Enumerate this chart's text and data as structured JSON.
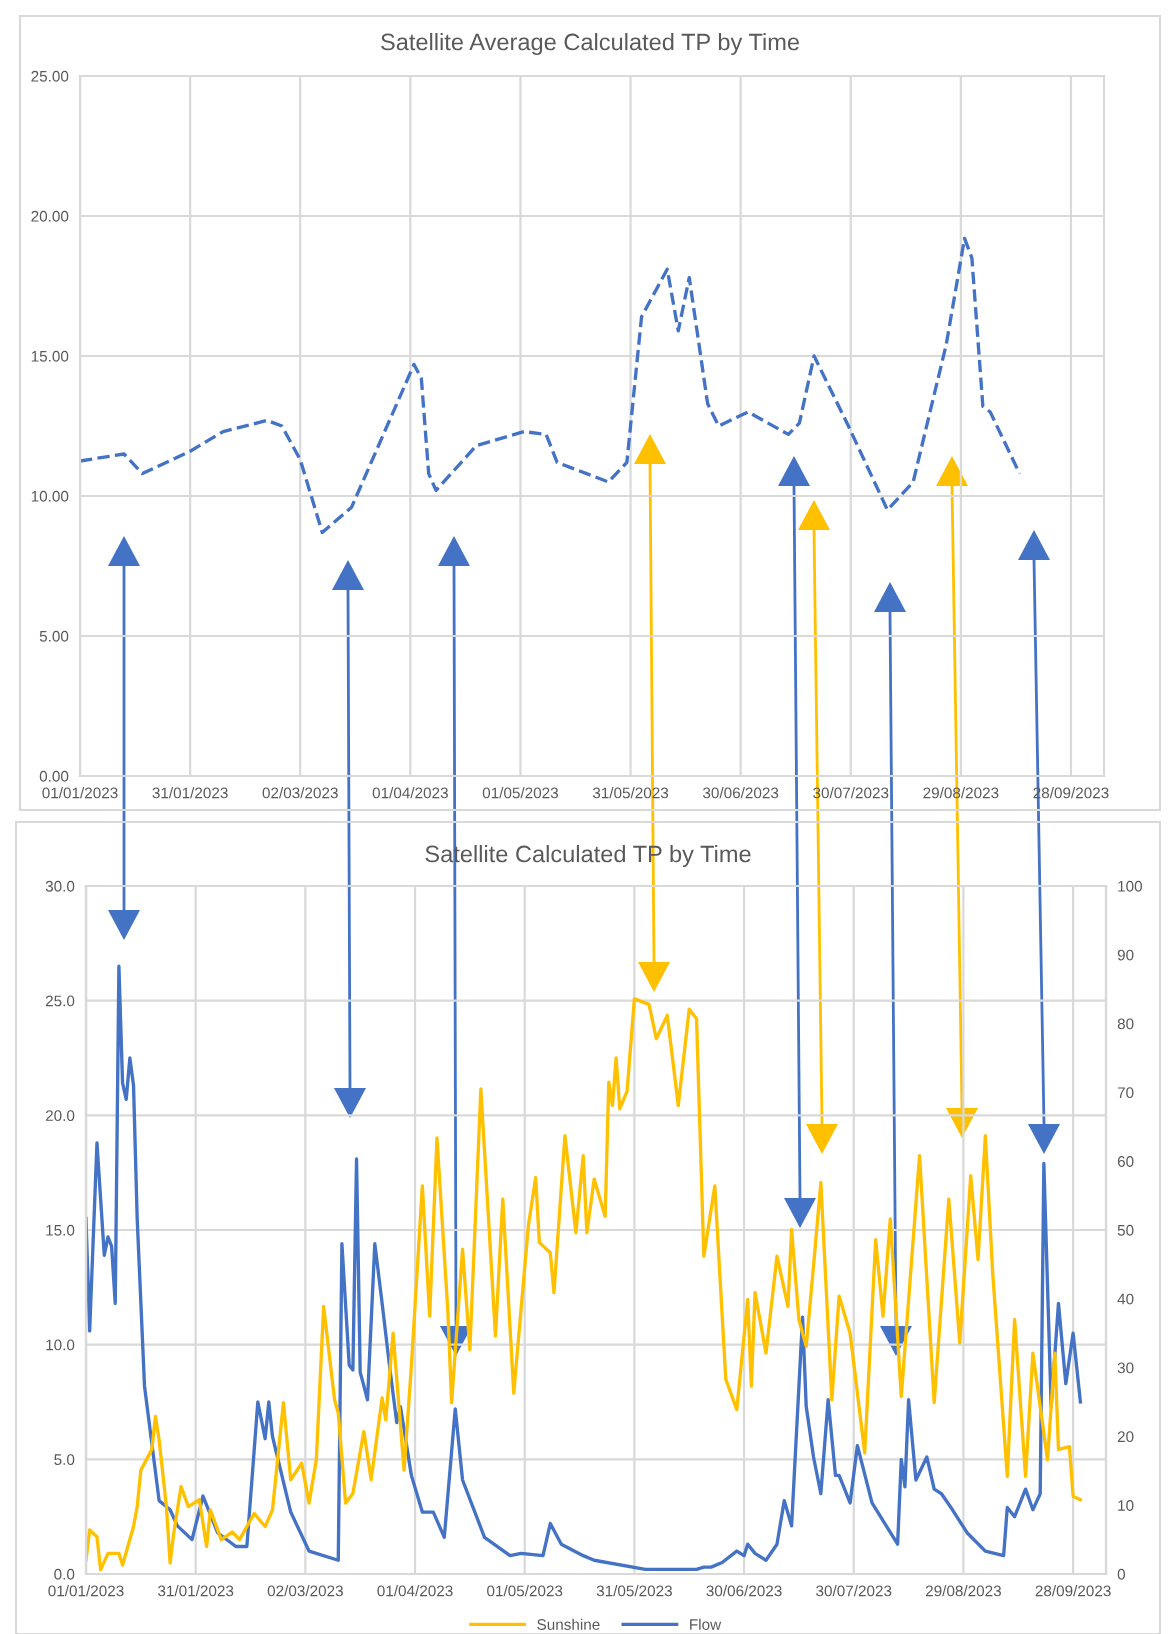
{
  "chart_data": [
    {
      "type": "line",
      "title": "Satellite Average Calculated TP by Time",
      "grid": true,
      "legend": false,
      "marker": "none",
      "line_style": "dashed",
      "xlim": [
        "2023-01-01",
        "2023-10-07"
      ],
      "xticks": [
        {
          "value": "2023-01-01",
          "label": "01/01/2023"
        },
        {
          "value": "2023-01-31",
          "label": "31/01/2023"
        },
        {
          "value": "2023-03-02",
          "label": "02/03/2023"
        },
        {
          "value": "2023-04-01",
          "label": "01/04/2023"
        },
        {
          "value": "2023-05-01",
          "label": "01/05/2023"
        },
        {
          "value": "2023-05-31",
          "label": "31/05/2023"
        },
        {
          "value": "2023-06-30",
          "label": "30/06/2023"
        },
        {
          "value": "2023-07-30",
          "label": "30/07/2023"
        },
        {
          "value": "2023-08-29",
          "label": "29/08/2023"
        },
        {
          "value": "2023-09-28",
          "label": "28/09/2023"
        }
      ],
      "ylim": [
        0,
        25
      ],
      "yticks": [
        {
          "value": 0,
          "label": "0.00"
        },
        {
          "value": 5,
          "label": "5.00"
        },
        {
          "value": 10,
          "label": "10.00"
        },
        {
          "value": 15,
          "label": "15.00"
        },
        {
          "value": 20,
          "label": "20.00"
        },
        {
          "value": 25,
          "label": "25.00"
        }
      ],
      "series": [
        {
          "color": "#4472c4",
          "x": [
            "2023-01-01",
            "2023-01-13",
            "2023-01-18",
            "2023-01-31",
            "2023-02-09",
            "2023-02-21",
            "2023-02-25",
            "2023-03-02",
            "2023-03-08",
            "2023-03-16",
            "2023-03-26",
            "2023-04-02",
            "2023-04-04",
            "2023-04-06",
            "2023-04-08",
            "2023-04-19",
            "2023-05-02",
            "2023-05-08",
            "2023-05-11",
            "2023-05-25",
            "2023-05-30",
            "2023-06-03",
            "2023-06-10",
            "2023-06-13",
            "2023-06-16",
            "2023-06-21",
            "2023-06-24",
            "2023-07-02",
            "2023-07-13",
            "2023-07-16",
            "2023-07-20",
            "2023-07-29",
            "2023-08-09",
            "2023-08-16",
            "2023-08-25",
            "2023-08-30",
            "2023-09-01",
            "2023-09-04",
            "2023-09-06",
            "2023-09-14"
          ],
          "values": [
            11.25,
            11.5,
            10.8,
            11.6,
            12.3,
            12.7,
            12.5,
            11.3,
            8.7,
            9.6,
            12.6,
            14.7,
            14.2,
            10.8,
            10.2,
            11.8,
            12.3,
            12.2,
            11.2,
            10.5,
            11.2,
            16.4,
            18.1,
            15.9,
            17.8,
            13.3,
            12.5,
            13.0,
            12.2,
            12.6,
            15.0,
            12.6,
            9.5,
            10.5,
            15.4,
            19.2,
            18.5,
            13.2,
            13.0,
            10.8
          ]
        }
      ]
    },
    {
      "type": "line",
      "title": "Satellite Calculated TP by Time",
      "grid": true,
      "legend": "bottom",
      "marker": "none",
      "line_style": "solid",
      "xlim": [
        "2023-01-01",
        "2023-10-07"
      ],
      "xticks": [
        {
          "value": "2023-01-01",
          "label": "01/01/2023"
        },
        {
          "value": "2023-01-31",
          "label": "31/01/2023"
        },
        {
          "value": "2023-03-02",
          "label": "02/03/2023"
        },
        {
          "value": "2023-04-01",
          "label": "01/04/2023"
        },
        {
          "value": "2023-05-01",
          "label": "01/05/2023"
        },
        {
          "value": "2023-05-31",
          "label": "31/05/2023"
        },
        {
          "value": "2023-06-30",
          "label": "30/06/2023"
        },
        {
          "value": "2023-07-30",
          "label": "30/07/2023"
        },
        {
          "value": "2023-08-29",
          "label": "29/08/2023"
        },
        {
          "value": "2023-09-28",
          "label": "28/09/2023"
        }
      ],
      "ylim": [
        0,
        30
      ],
      "yticks": [
        {
          "value": 0,
          "label": "0.0"
        },
        {
          "value": 5,
          "label": "5.0"
        },
        {
          "value": 10,
          "label": "10.0"
        },
        {
          "value": 15,
          "label": "15.0"
        },
        {
          "value": 20,
          "label": "20.0"
        },
        {
          "value": 25,
          "label": "25.0"
        },
        {
          "value": 30,
          "label": "30.0"
        }
      ],
      "y2lim": [
        0,
        100
      ],
      "y2ticks": [
        0,
        10,
        20,
        30,
        40,
        50,
        60,
        70,
        80,
        90,
        100
      ],
      "series": [
        {
          "name": "Sunshine",
          "color": "#ffc000",
          "axis": "y2",
          "x": [
            "2023-01-01",
            "2023-01-02",
            "2023-01-04",
            "2023-01-05",
            "2023-01-07",
            "2023-01-10",
            "2023-01-11",
            "2023-01-14",
            "2023-01-15",
            "2023-01-16",
            "2023-01-19",
            "2023-01-20",
            "2023-01-21",
            "2023-01-23",
            "2023-01-24",
            "2023-01-25",
            "2023-01-27",
            "2023-01-29",
            "2023-02-01",
            "2023-02-03",
            "2023-02-04",
            "2023-02-07",
            "2023-02-10",
            "2023-02-12",
            "2023-02-16",
            "2023-02-19",
            "2023-02-21",
            "2023-02-24",
            "2023-02-26",
            "2023-03-01",
            "2023-03-03",
            "2023-03-05",
            "2023-03-07",
            "2023-03-10",
            "2023-03-11",
            "2023-03-13",
            "2023-03-15",
            "2023-03-18",
            "2023-03-20",
            "2023-03-23",
            "2023-03-24",
            "2023-03-26",
            "2023-03-29",
            "2023-03-31",
            "2023-04-03",
            "2023-04-05",
            "2023-04-07",
            "2023-04-10",
            "2023-04-11",
            "2023-04-14",
            "2023-04-16",
            "2023-04-19",
            "2023-04-23",
            "2023-04-25",
            "2023-04-28",
            "2023-05-02",
            "2023-05-04",
            "2023-05-05",
            "2023-05-08",
            "2023-05-09",
            "2023-05-12",
            "2023-05-15",
            "2023-05-17",
            "2023-05-18",
            "2023-05-20",
            "2023-05-23",
            "2023-05-24",
            "2023-05-25",
            "2023-05-26",
            "2023-05-27",
            "2023-05-29",
            "2023-05-31",
            "2023-06-04",
            "2023-06-06",
            "2023-06-09",
            "2023-06-12",
            "2023-06-15",
            "2023-06-17",
            "2023-06-19",
            "2023-06-22",
            "2023-06-25",
            "2023-06-28",
            "2023-07-01",
            "2023-07-02",
            "2023-07-03",
            "2023-07-06",
            "2023-07-09",
            "2023-07-12",
            "2023-07-13",
            "2023-07-15",
            "2023-07-17",
            "2023-07-19",
            "2023-07-21",
            "2023-07-24",
            "2023-07-26",
            "2023-07-29",
            "2023-08-02",
            "2023-08-05",
            "2023-08-07",
            "2023-08-09",
            "2023-08-12",
            "2023-08-17",
            "2023-08-21",
            "2023-08-25",
            "2023-08-28",
            "2023-08-31",
            "2023-09-02",
            "2023-09-04",
            "2023-09-06",
            "2023-09-10",
            "2023-09-12",
            "2023-09-15",
            "2023-09-17",
            "2023-09-21",
            "2023-09-23",
            "2023-09-24",
            "2023-09-27",
            "2023-09-28",
            "2023-09-30"
          ],
          "values": [
            2.0,
            6.4,
            5.4,
            0.6,
            3.0,
            3.0,
            1.3,
            6.9,
            9.8,
            15.1,
            18.1,
            22.9,
            19.5,
            9.8,
            1.6,
            5.9,
            12.7,
            9.8,
            10.8,
            4.0,
            9.3,
            5.0,
            6.1,
            5.0,
            8.8,
            6.9,
            9.3,
            24.9,
            13.7,
            16.1,
            10.3,
            16.6,
            38.9,
            25.3,
            23.4,
            10.3,
            11.7,
            20.7,
            13.7,
            25.6,
            22.4,
            35.0,
            15.1,
            30.2,
            56.4,
            37.5,
            63.4,
            38.0,
            24.9,
            47.2,
            32.6,
            70.5,
            34.6,
            54.5,
            26.3,
            50.6,
            57.6,
            48.2,
            46.7,
            40.9,
            63.7,
            49.6,
            60.8,
            49.6,
            57.4,
            52.0,
            71.5,
            68.1,
            75.0,
            67.6,
            70.2,
            83.6,
            82.8,
            77.8,
            81.2,
            68.1,
            82.1,
            80.7,
            46.2,
            56.4,
            28.3,
            23.9,
            39.9,
            27.3,
            40.9,
            32.1,
            46.2,
            38.9,
            50.1,
            37.0,
            33.1,
            44.8,
            56.9,
            25.3,
            40.4,
            35.0,
            17.6,
            48.6,
            37.5,
            51.6,
            25.8,
            60.8,
            24.9,
            54.5,
            33.6,
            57.9,
            45.7,
            63.7,
            43.8,
            14.2,
            37.0,
            14.2,
            32.1,
            16.6,
            32.1,
            18.1,
            18.5,
            11.3,
            10.8
          ]
        },
        {
          "name": "Flow",
          "color": "#4472c4",
          "x": [
            "2023-01-01",
            "2023-01-02",
            "2023-01-04",
            "2023-01-06",
            "2023-01-07",
            "2023-01-08",
            "2023-01-09",
            "2023-01-10",
            "2023-01-11",
            "2023-01-12",
            "2023-01-13",
            "2023-01-14",
            "2023-01-15",
            "2023-01-17",
            "2023-01-21",
            "2023-01-24",
            "2023-01-26",
            "2023-01-30",
            "2023-02-02",
            "2023-02-06",
            "2023-02-11",
            "2023-02-14",
            "2023-02-17",
            "2023-02-19",
            "2023-02-20",
            "2023-02-21",
            "2023-02-26",
            "2023-03-03",
            "2023-03-11",
            "2023-03-12",
            "2023-03-14",
            "2023-03-15",
            "2023-03-16",
            "2023-03-17",
            "2023-03-19",
            "2023-03-21",
            "2023-03-23",
            "2023-03-25",
            "2023-03-27",
            "2023-03-28",
            "2023-03-31",
            "2023-04-03",
            "2023-04-06",
            "2023-04-09",
            "2023-04-12",
            "2023-04-14",
            "2023-04-20",
            "2023-04-27",
            "2023-04-30",
            "2023-05-06",
            "2023-05-08",
            "2023-05-11",
            "2023-05-17",
            "2023-05-20",
            "2023-06-03",
            "2023-06-17",
            "2023-06-19",
            "2023-06-21",
            "2023-06-24",
            "2023-06-28",
            "2023-06-30",
            "2023-07-01",
            "2023-07-03",
            "2023-07-06",
            "2023-07-09",
            "2023-07-11",
            "2023-07-13",
            "2023-07-16",
            "2023-07-17",
            "2023-07-19",
            "2023-07-21",
            "2023-07-23",
            "2023-07-25",
            "2023-07-26",
            "2023-07-29",
            "2023-07-31",
            "2023-08-04",
            "2023-08-11",
            "2023-08-12",
            "2023-08-13",
            "2023-08-14",
            "2023-08-16",
            "2023-08-19",
            "2023-08-21",
            "2023-08-23",
            "2023-08-26",
            "2023-08-30",
            "2023-09-04",
            "2023-09-09",
            "2023-09-10",
            "2023-09-12",
            "2023-09-15",
            "2023-09-17",
            "2023-09-19",
            "2023-09-20",
            "2023-09-22",
            "2023-09-24",
            "2023-09-26",
            "2023-09-28",
            "2023-09-30"
          ],
          "values": [
            15.5,
            10.6,
            18.8,
            13.9,
            14.7,
            14.3,
            11.8,
            26.5,
            21.4,
            20.7,
            22.5,
            21.3,
            15.5,
            8.2,
            3.2,
            2.8,
            2.1,
            1.5,
            3.4,
            1.8,
            1.2,
            1.2,
            7.5,
            5.9,
            7.5,
            6.0,
            2.7,
            1.0,
            0.6,
            14.4,
            9.1,
            8.9,
            18.1,
            8.8,
            7.6,
            14.4,
            11.8,
            9.1,
            6.6,
            7.3,
            4.3,
            2.7,
            2.7,
            1.6,
            7.2,
            4.1,
            1.6,
            0.8,
            0.9,
            0.8,
            2.2,
            1.3,
            0.8,
            0.6,
            0.2,
            0.2,
            0.3,
            0.3,
            0.5,
            1.0,
            0.8,
            1.3,
            0.9,
            0.6,
            1.3,
            3.2,
            2.1,
            11.2,
            7.3,
            5.1,
            3.5,
            7.6,
            4.3,
            4.3,
            3.1,
            5.6,
            3.1,
            1.3,
            5.0,
            3.8,
            7.6,
            4.1,
            5.1,
            3.7,
            3.5,
            2.8,
            1.8,
            1.0,
            0.8,
            2.9,
            2.5,
            3.7,
            2.8,
            3.5,
            17.9,
            7.3,
            11.8,
            8.3,
            10.5,
            7.5
          ]
        }
      ]
    }
  ]
}
